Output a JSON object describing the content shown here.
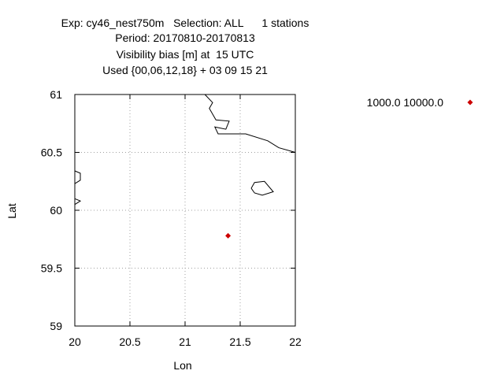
{
  "title_lines": [
    "Exp: cy46_nest750m   Selection: ALL      1 stations",
    "Period: 20170810-20170813",
    "Visibility bias [m] at  15 UTC",
    "Used {00,06,12,18} + 03 09 15 21"
  ],
  "chart_data": {
    "type": "scatter",
    "title": "Visibility bias [m] at  15 UTC",
    "xlabel": "Lon",
    "ylabel": "Lat",
    "xlim": [
      20,
      22
    ],
    "ylim": [
      59,
      61
    ],
    "x_ticks": [
      "20",
      "20.5",
      "21",
      "21.5",
      "22"
    ],
    "y_ticks": [
      "59",
      "59.5",
      "60",
      "60.5",
      "61"
    ],
    "x_tick_values": [
      20,
      20.5,
      21,
      21.5,
      22
    ],
    "y_tick_values": [
      59,
      59.5,
      60,
      60.5,
      61
    ],
    "grid": true,
    "legend_position": "top-right, outside plot",
    "series": [
      {
        "name": "1000.0 10000.0",
        "color": "#cc0000",
        "marker": "diamond",
        "points": [
          [
            21.39,
            59.78
          ]
        ]
      }
    ],
    "coastlines": [
      [
        [
          21.18,
          61.0
        ],
        [
          21.25,
          60.93
        ],
        [
          21.22,
          60.88
        ],
        [
          21.28,
          60.78
        ],
        [
          21.4,
          60.77
        ],
        [
          21.37,
          60.7
        ],
        [
          21.27,
          60.72
        ],
        [
          21.3,
          60.66
        ],
        [
          21.55,
          60.66
        ],
        [
          21.75,
          60.6
        ],
        [
          21.85,
          60.54
        ],
        [
          22.0,
          60.5
        ]
      ],
      [
        [
          20.0,
          60.34
        ],
        [
          20.05,
          60.32
        ],
        [
          20.05,
          60.26
        ],
        [
          20.0,
          60.23
        ]
      ],
      [
        [
          20.0,
          60.1
        ],
        [
          20.05,
          60.08
        ],
        [
          20.0,
          60.05
        ]
      ],
      [
        [
          21.6,
          60.19
        ],
        [
          21.63,
          60.24
        ],
        [
          21.72,
          60.25
        ],
        [
          21.8,
          60.16
        ],
        [
          21.7,
          60.13
        ],
        [
          21.63,
          60.15
        ],
        [
          21.6,
          60.19
        ]
      ]
    ]
  }
}
